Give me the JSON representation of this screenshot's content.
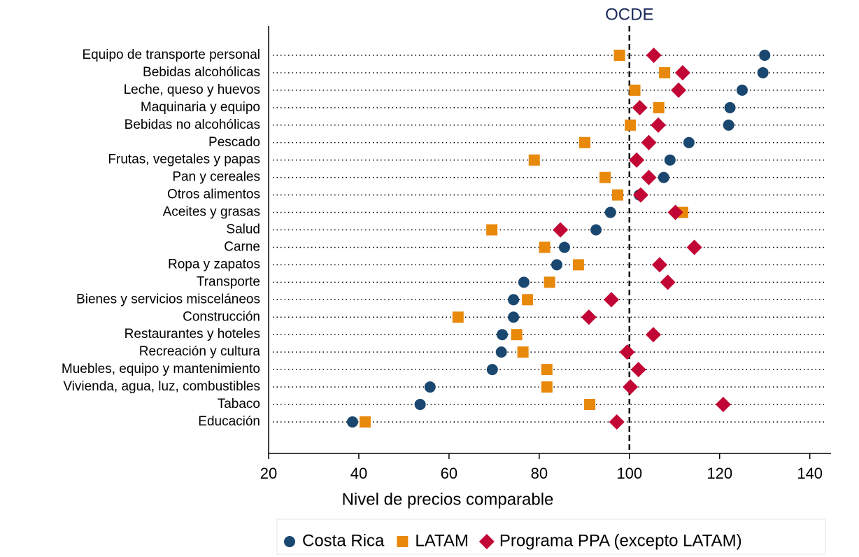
{
  "chart_data": {
    "type": "dot",
    "x_label": "Nivel de precios comparable",
    "reference_line": {
      "value": 100,
      "label": "OCDE"
    },
    "categories": [
      "Equipo de transporte personal",
      "Bebidas alcohólicas",
      "Leche, queso y huevos",
      "Maquinaria y equipo",
      "Bebidas no alcohólicas",
      "Pescado",
      "Frutas, vegetales y papas",
      "Pan y cereales",
      "Otros alimentos",
      "Aceites y grasas",
      "Salud",
      "Carne",
      "Ropa y zapatos",
      "Transporte",
      "Bienes y servicios misceláneos",
      "Construcción",
      "Restaurantes y hoteles",
      "Recreación y cultura",
      "Muebles, equipo y mantenimiento",
      "Vivienda, agua, luz, combustibles",
      "Tabaco",
      "Educación"
    ],
    "series": [
      {
        "name": "Costa Rica",
        "color": "#1a476f",
        "marker": "circle",
        "values": [
          130,
          129.6,
          125,
          122.3,
          122,
          113.2,
          109,
          107.6,
          102.2,
          95.8,
          92.6,
          85.6,
          83.9,
          76.6,
          74.3,
          74.3,
          71.8,
          71.6,
          69.6,
          55.8,
          53.6,
          38.6
        ]
      },
      {
        "name": "LATAM",
        "color": "#e8890c",
        "marker": "square",
        "values": [
          97.8,
          107.8,
          101.2,
          106.5,
          100.2,
          90.1,
          78.9,
          94.6,
          97.4,
          111.8,
          69.5,
          81.2,
          88.7,
          82.3,
          77.4,
          62,
          75,
          76.4,
          81.7,
          81.7,
          91.2,
          41.4
        ]
      },
      {
        "name": "Programa PPA (excepto LATAM)",
        "color": "#c10534",
        "marker": "diamond",
        "values": [
          105.4,
          111.8,
          110.9,
          102.3,
          106.4,
          104.3,
          101.6,
          104.3,
          102.5,
          110.2,
          84.7,
          114.4,
          106.7,
          108.5,
          96,
          91,
          105.3,
          99.5,
          102,
          100.2,
          120.8,
          97.2
        ]
      }
    ],
    "xlim": [
      20,
      144.7
    ],
    "xticks": [
      20,
      40,
      60,
      80,
      100,
      120,
      140
    ],
    "legend": "bottom"
  }
}
